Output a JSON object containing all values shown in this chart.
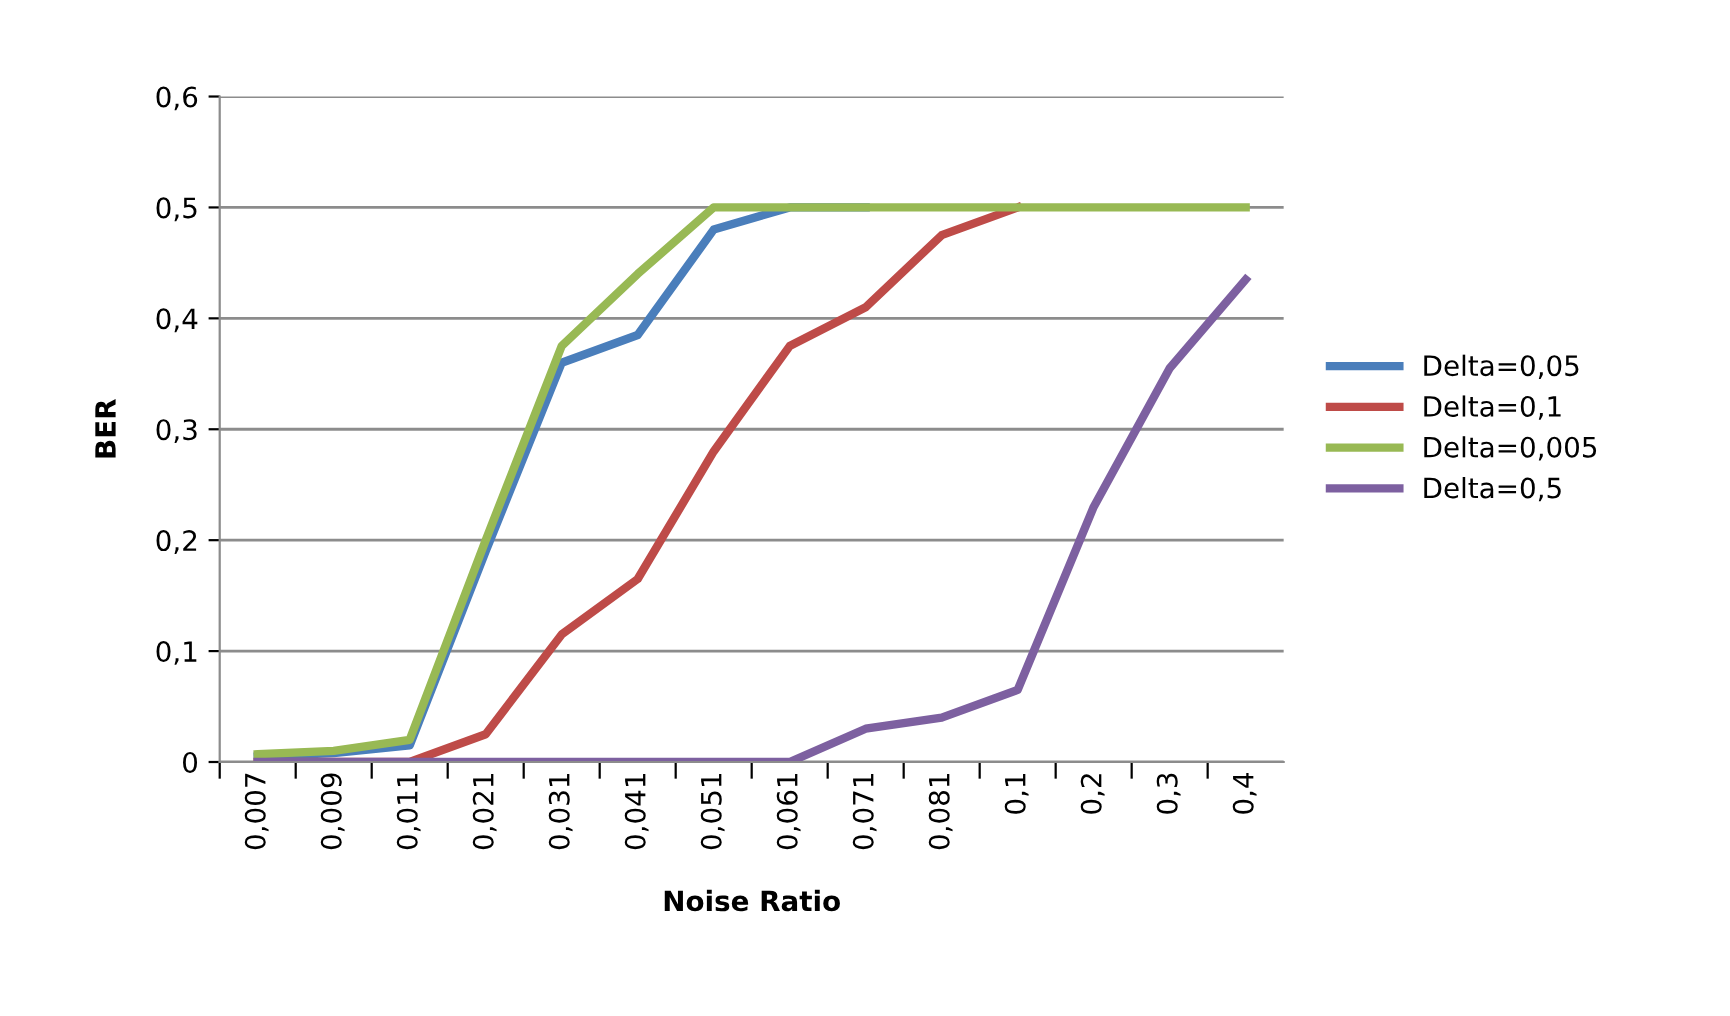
{
  "chart_data": {
    "type": "line",
    "xlabel": "Noise Ratio",
    "ylabel": "BER",
    "categories": [
      "0,007",
      "0,009",
      "0,011",
      "0,021",
      "0,031",
      "0,041",
      "0,051",
      "0,061",
      "0,071",
      "0,081",
      "0,1",
      "0,2",
      "0,3",
      "0,4"
    ],
    "ylim": [
      0,
      0.6
    ],
    "yticks": [
      {
        "value": 0,
        "label": "0"
      },
      {
        "value": 0.1,
        "label": "0,1"
      },
      {
        "value": 0.2,
        "label": "0,2"
      },
      {
        "value": 0.3,
        "label": "0,3"
      },
      {
        "value": 0.4,
        "label": "0,4"
      },
      {
        "value": 0.5,
        "label": "0,5"
      },
      {
        "value": 0.6,
        "label": "0,6"
      }
    ],
    "grid": "y",
    "legend": "right",
    "marker": "none",
    "line_style": "solid",
    "series": [
      {
        "name": "Delta=0,05",
        "color": "#4a7ebb",
        "values": [
          0.005,
          0.008,
          0.015,
          0.19,
          0.36,
          0.385,
          0.48,
          0.5,
          0.5,
          null,
          null,
          null,
          null,
          null
        ]
      },
      {
        "name": "Delta=0,1",
        "color": "#be4b48",
        "values": [
          0,
          0,
          0,
          0.025,
          0.115,
          0.165,
          0.28,
          0.375,
          0.41,
          0.475,
          0.5,
          null,
          null,
          null
        ]
      },
      {
        "name": "Delta=0,005",
        "color": "#98b954",
        "values": [
          0.007,
          0.01,
          0.02,
          0.2,
          0.375,
          0.44,
          0.5,
          0.5,
          0.5,
          0.5,
          0.5,
          0.5,
          0.5,
          0.5
        ]
      },
      {
        "name": "Delta=0,5",
        "color": "#7d60a0",
        "values": [
          0,
          0,
          0,
          0,
          0,
          0,
          0,
          0,
          0.03,
          0.04,
          0.065,
          0.23,
          0.355,
          0.435
        ]
      }
    ]
  }
}
